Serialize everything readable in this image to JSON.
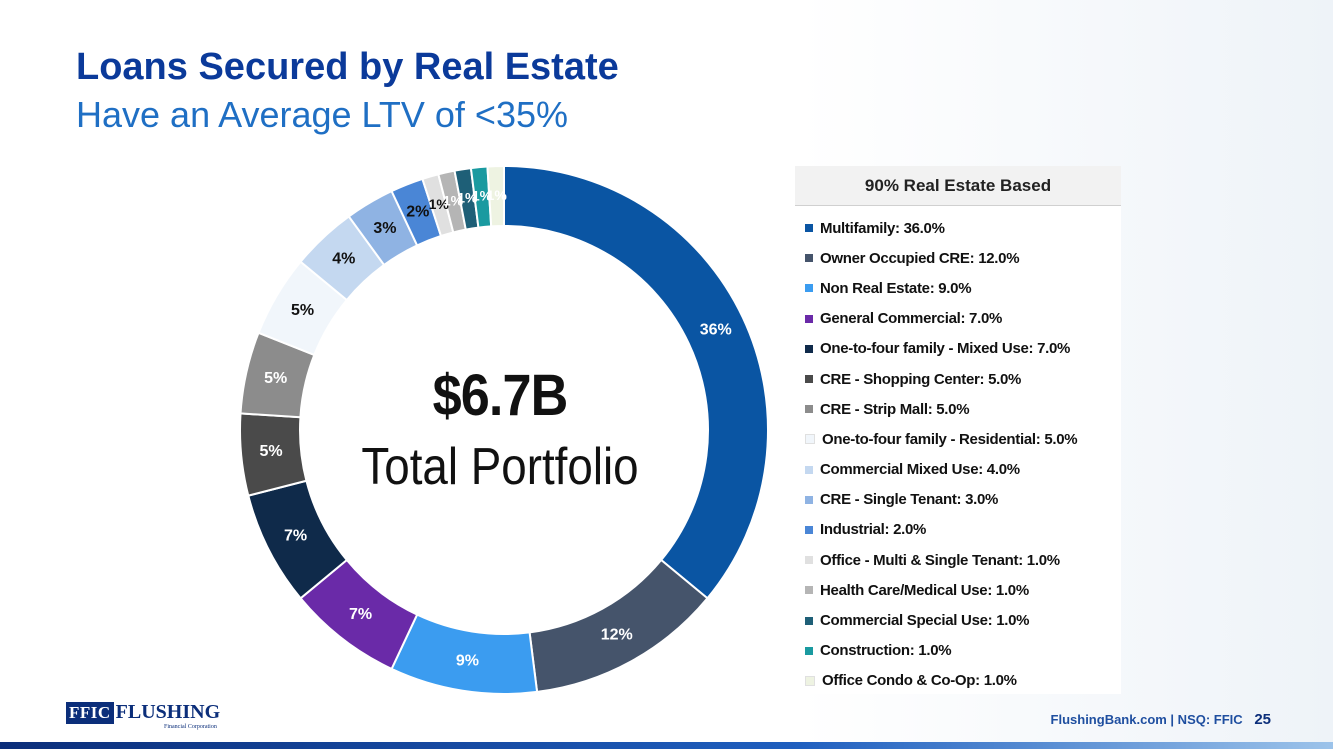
{
  "title": {
    "main": "Loans Secured by Real Estate",
    "sub": "Have an Average LTV of <35%"
  },
  "center": {
    "value": "$6.7B",
    "label": "Total Portfolio"
  },
  "legend": {
    "title": "90% Real Estate Based"
  },
  "footer": {
    "logo_box": "FFIC",
    "logo_word": "FLUSHING",
    "logo_sub": "Financial Corporation",
    "site": "FlushingBank.com  |  NSQ: FFIC",
    "page": "25"
  },
  "chart_data": {
    "type": "pie",
    "variant": "donut",
    "title": "Loans Secured by Real Estate",
    "unit": "%",
    "categories": [
      "Multifamily",
      "Owner Occupied CRE",
      "Non Real Estate",
      "General Commercial",
      "One-to-four family - Mixed Use",
      "CRE - Shopping Center",
      "CRE - Strip Mall",
      "One-to-four family - Residential",
      "Commercial Mixed Use",
      "CRE - Single Tenant",
      "Industrial",
      "Office - Multi & Single Tenant",
      "Health Care/Medical Use",
      "Commercial Special Use",
      "Construction",
      "Office Condo & Co-Op"
    ],
    "values": [
      36.0,
      12.0,
      9.0,
      7.0,
      7.0,
      5.0,
      5.0,
      5.0,
      4.0,
      3.0,
      2.0,
      1.0,
      1.0,
      1.0,
      1.0,
      1.0
    ],
    "legend_labels": [
      "Multifamily: 36.0%",
      "Owner Occupied CRE: 12.0%",
      "Non Real Estate: 9.0%",
      "General Commercial: 7.0%",
      "One-to-four family - Mixed Use: 7.0%",
      "CRE - Shopping Center: 5.0%",
      "CRE - Strip Mall: 5.0%",
      "One-to-four family - Residential: 5.0%",
      "Commercial Mixed Use: 4.0%",
      "CRE - Single Tenant: 3.0%",
      "Industrial: 2.0%",
      "Office - Multi & Single Tenant: 1.0%",
      "Health Care/Medical Use: 1.0%",
      "Commercial Special Use: 1.0%",
      "Construction: 1.0%",
      "Office Condo & Co-Op: 1.0%"
    ],
    "data_labels": [
      "36%",
      "12%",
      "9%",
      "7%",
      "7%",
      "5%",
      "5%",
      "5%",
      "4%",
      "3%",
      "2%",
      "1%",
      "1%",
      "1%",
      "1%",
      "1%"
    ],
    "colors": [
      "#0a55a3",
      "#45546b",
      "#3b9cf0",
      "#6a2aa8",
      "#0f2a4a",
      "#4a4a4a",
      "#8c8c8c",
      "#f1f6fb",
      "#c4d8f0",
      "#8fb3e3",
      "#4a86d6",
      "#e0e0e0",
      "#b5b5b5",
      "#1e5f77",
      "#1a9aa0",
      "#eef3e2"
    ],
    "label_colors": [
      "#ffffff",
      "#ffffff",
      "#ffffff",
      "#ffffff",
      "#ffffff",
      "#ffffff",
      "#ffffff",
      "#111111",
      "#111111",
      "#111111",
      "#111111",
      "#111111",
      "#ffffff",
      "#ffffff",
      "#ffffff",
      "#ffffff"
    ],
    "legend_placement": "right"
  }
}
